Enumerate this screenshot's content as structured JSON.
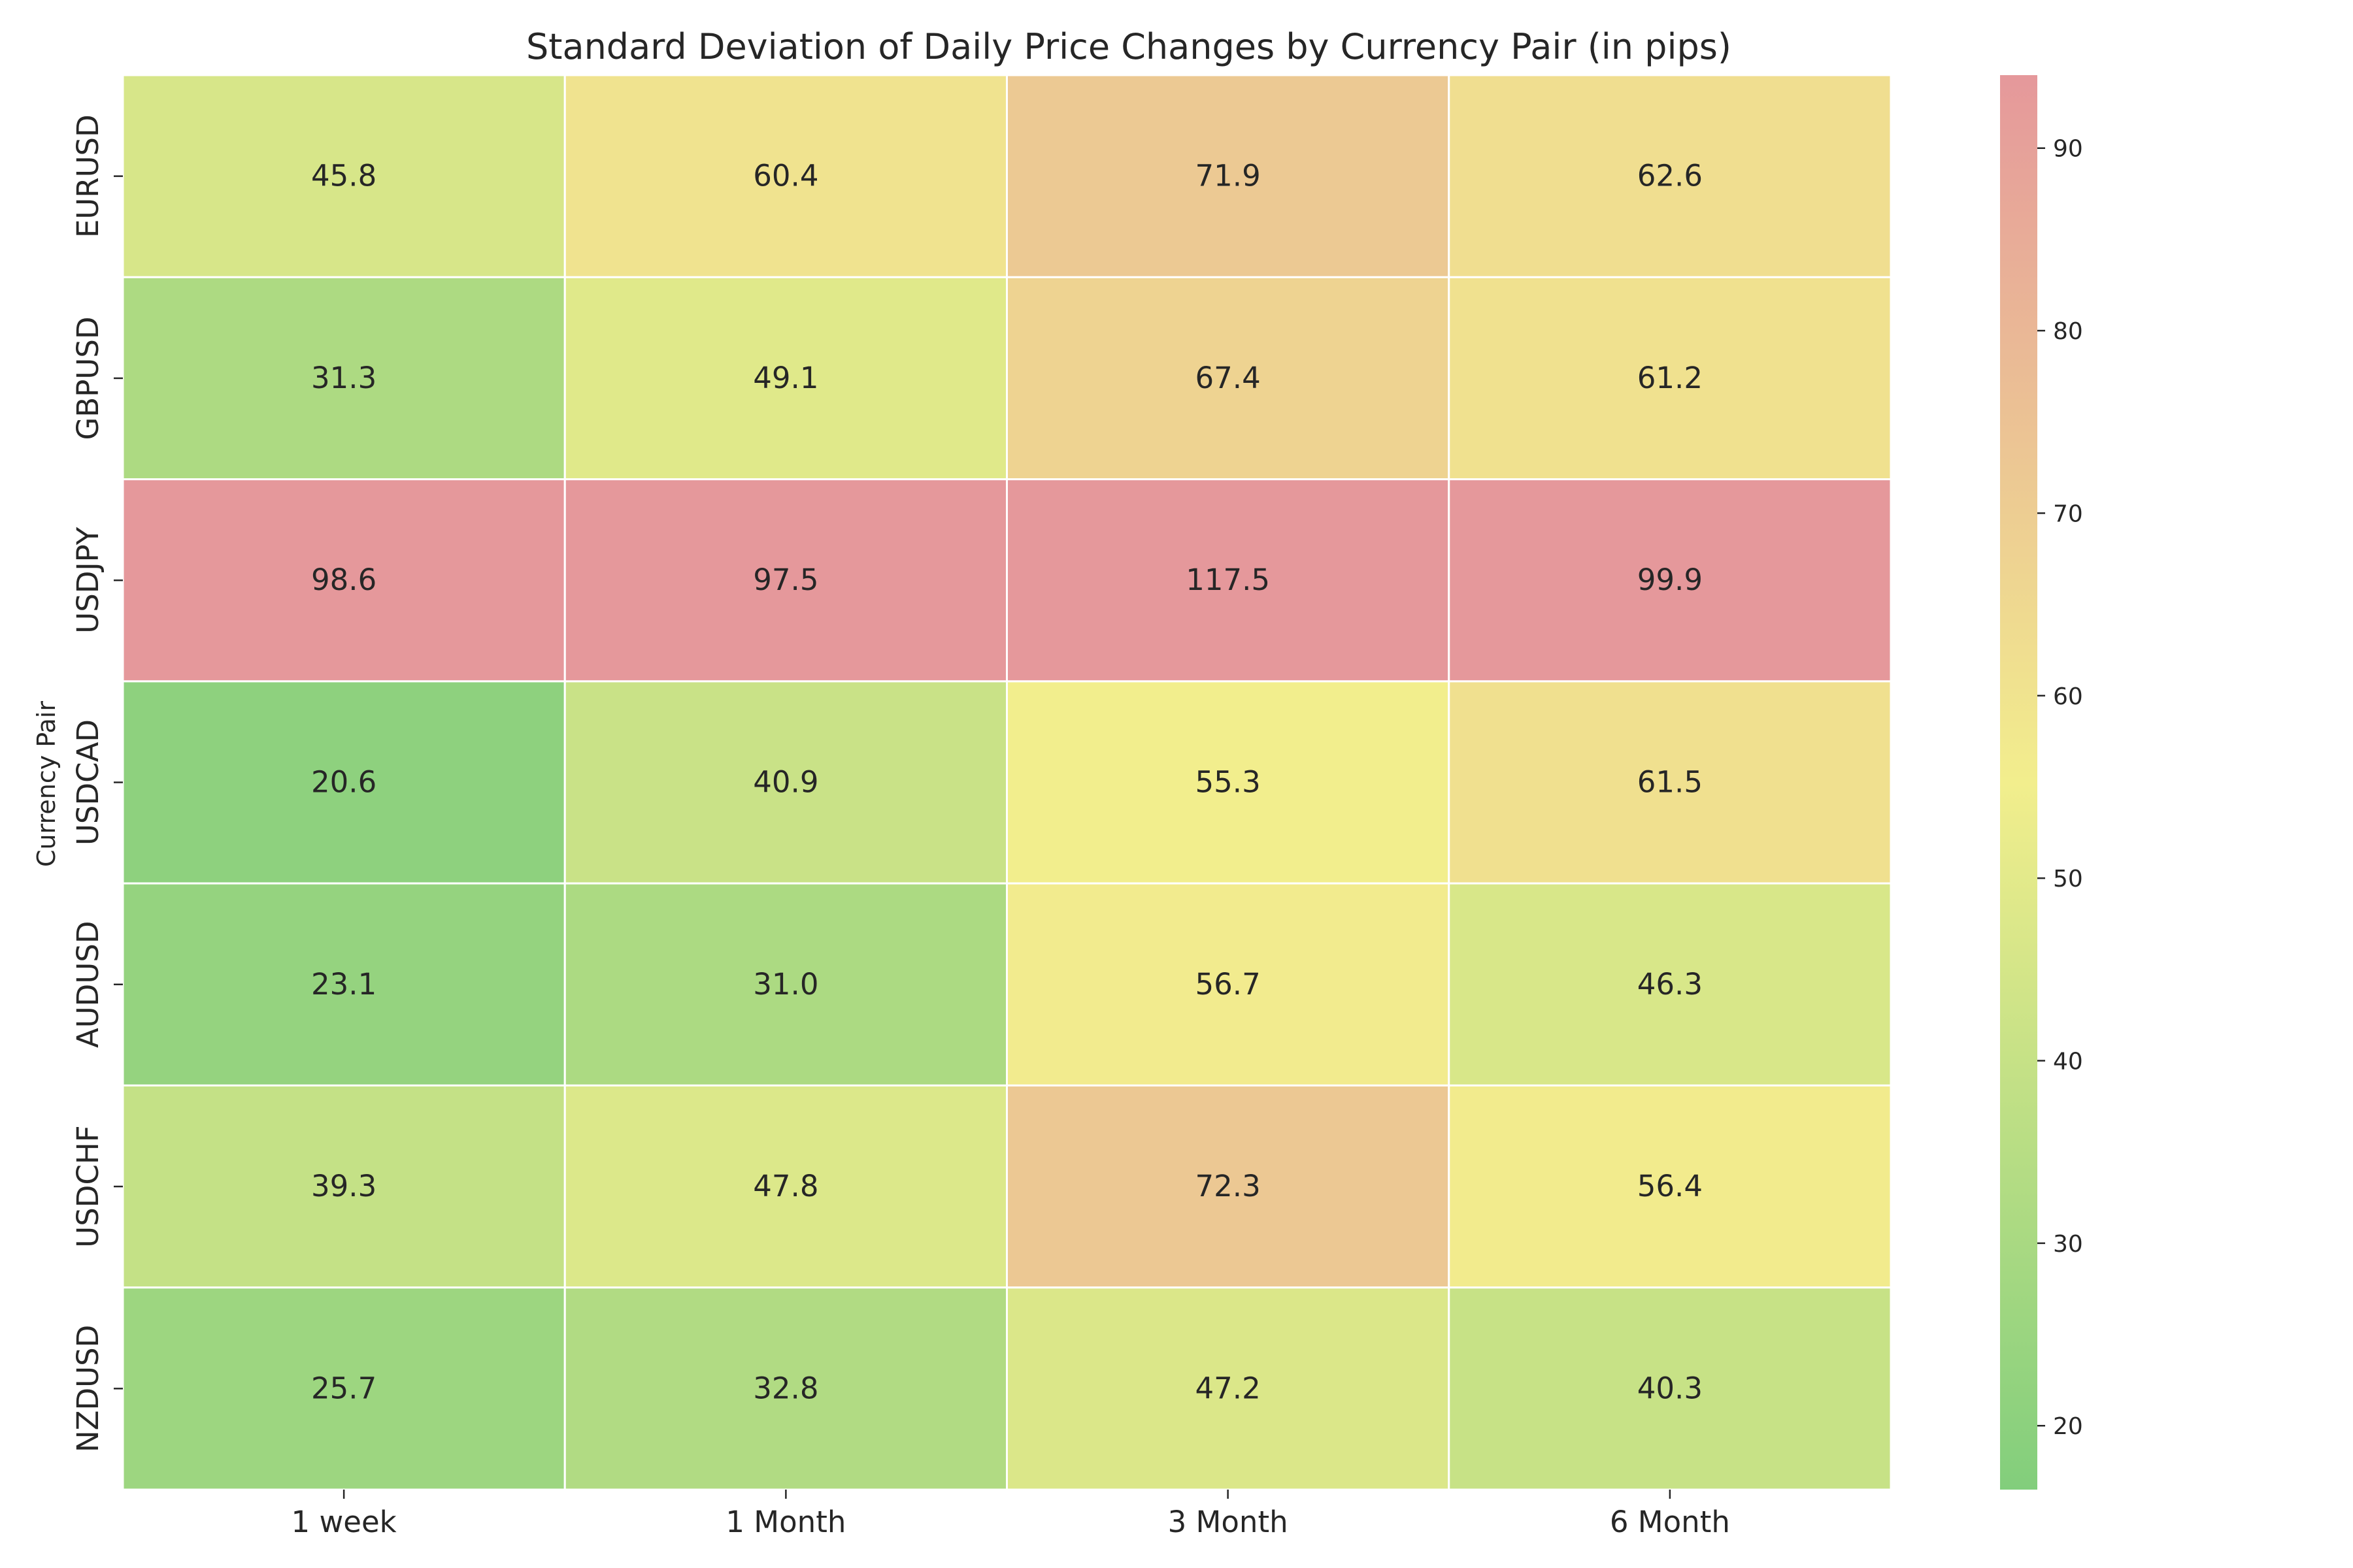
{
  "chart_data": {
    "type": "heatmap",
    "title": "Standard Deviation of Daily Price Changes by Currency Pair (in pips)",
    "xlabel": "",
    "ylabel": "Currency Pair",
    "columns": [
      "1 week",
      "1 Month",
      "3 Month",
      "6 Month"
    ],
    "rows": [
      "EURUSD",
      "GBPUSD",
      "USDJPY",
      "USDCAD",
      "AUDUSD",
      "USDCHF",
      "NZDUSD"
    ],
    "values": [
      [
        45.8,
        60.4,
        71.9,
        62.6
      ],
      [
        31.3,
        49.1,
        67.4,
        61.2
      ],
      [
        98.6,
        97.5,
        117.5,
        99.9
      ],
      [
        20.6,
        40.9,
        55.3,
        61.5
      ],
      [
        23.1,
        31.0,
        56.7,
        46.3
      ],
      [
        39.3,
        47.8,
        72.3,
        56.4
      ],
      [
        25.7,
        32.8,
        47.2,
        40.3
      ]
    ],
    "value_format": "0.0",
    "colorbar": {
      "range": [
        16.5,
        94
      ],
      "ticks": [
        20,
        30,
        40,
        50,
        60,
        70,
        80,
        90
      ],
      "colors": [
        "#82ce7c",
        "#f2ee8d",
        "#e5989b"
      ]
    }
  }
}
